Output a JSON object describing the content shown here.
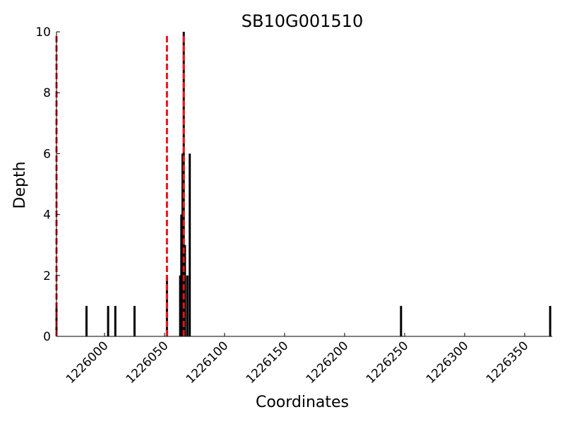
{
  "chart_data": {
    "type": "bar",
    "title": "SB10G001510",
    "xlabel": "Coordinates",
    "ylabel": "Depth",
    "xlim": [
      1225960,
      1226373
    ],
    "ylim": [
      0,
      10
    ],
    "x_ticks": [
      1226000,
      1226050,
      1226100,
      1226150,
      1226200,
      1226250,
      1226300,
      1226350
    ],
    "x_tick_labels": [
      "1226000",
      "1226050",
      "1226100",
      "1226150",
      "1226200",
      "1226250",
      "1226300",
      "1226350"
    ],
    "y_ticks": [
      0,
      2,
      4,
      6,
      8,
      10
    ],
    "y_tick_labels": [
      "0",
      "2",
      "4",
      "6",
      "8",
      "10"
    ],
    "grid": false,
    "bar_color": "#000000",
    "bars": [
      {
        "x": 1225960,
        "depth": 1
      },
      {
        "x": 1225985,
        "depth": 1
      },
      {
        "x": 1226003,
        "depth": 1
      },
      {
        "x": 1226009,
        "depth": 1
      },
      {
        "x": 1226025,
        "depth": 1
      },
      {
        "x": 1226052,
        "depth": 2
      },
      {
        "x": 1226063,
        "depth": 2
      },
      {
        "x": 1226064,
        "depth": 4
      },
      {
        "x": 1226065,
        "depth": 6
      },
      {
        "x": 1226066,
        "depth": 10
      },
      {
        "x": 1226067,
        "depth": 3
      },
      {
        "x": 1226069,
        "depth": 2
      },
      {
        "x": 1226071,
        "depth": 6
      },
      {
        "x": 1226247,
        "depth": 1
      },
      {
        "x": 1226378,
        "depth": 1
      }
    ],
    "markers": {
      "color": "#e8141b",
      "style": "dashed",
      "x": [
        1225960,
        1226052,
        1226066
      ]
    }
  }
}
